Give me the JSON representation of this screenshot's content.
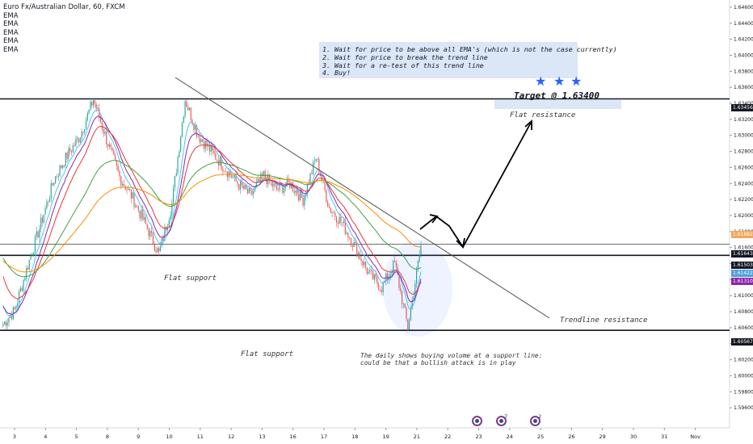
{
  "legend": {
    "title": "Euro Fx/Australian Dollar, 60, FXCM",
    "indicators": [
      "EMA",
      "EMA",
      "EMA",
      "EMA",
      "EMA"
    ]
  },
  "note": {
    "lines": [
      "1. Wait for price to be above all EMA's (which is not the case currently)",
      "2. Wait for price to break the trend line",
      "3. Wait for a re-test of this trend line",
      "4. Buy!"
    ]
  },
  "annotations": {
    "target": "Target @ 1.63400",
    "flat_resistance": "Flat resistance",
    "flat_support_1": "Flat support",
    "flat_support_2": "Flat support",
    "trendline_resistance": "Trendline resistance",
    "daily_note_1": "The daily shows buying volume at a support line:",
    "daily_note_2": "could be that a bullish attack is in play"
  },
  "stars": [
    "star-icon",
    "star-icon",
    "star-icon"
  ],
  "price_tags": [
    {
      "label": "1.63456",
      "color": "#131722"
    },
    {
      "label": "1.61882",
      "color": "#f5a55a"
    },
    {
      "label": "1.61643",
      "color": "#131722"
    },
    {
      "label": "1.61503",
      "color": "#131722"
    },
    {
      "label": "1.61422",
      "color": "#4f9fd9"
    },
    {
      "label": "1.61310",
      "color": "#8e24aa"
    },
    {
      "label": "1.60567",
      "color": "#131722"
    }
  ],
  "events": [
    {
      "name": "event-icon",
      "count": ""
    },
    {
      "name": "event-icon",
      "count": "7"
    },
    {
      "name": "event-icon",
      "count": "2"
    }
  ],
  "chart_data": {
    "type": "candlestick",
    "symbol": "Euro Fx/Australian Dollar, 60, FXCM",
    "ylim": [
      1.594,
      1.6465
    ],
    "y_ticks": [
      "1.64600",
      "1.64400",
      "1.64200",
      "1.64000",
      "1.63800",
      "1.63600",
      "1.63400",
      "1.63200",
      "1.63000",
      "1.62800",
      "1.62600",
      "1.62400",
      "1.62200",
      "1.62000",
      "1.61800",
      "1.61600",
      "1.61400",
      "1.61200",
      "1.61000",
      "1.60800",
      "1.60600",
      "1.60400",
      "1.60200",
      "1.60000",
      "1.59800",
      "1.59600"
    ],
    "x_ticks": [
      "3",
      "4",
      "5",
      "8",
      "9",
      "10",
      "11",
      "12",
      "13",
      "16",
      "17",
      "18",
      "19",
      "21",
      "22",
      "23",
      "24",
      "25",
      "26",
      "29",
      "30",
      "31",
      "Nov"
    ],
    "approx_close_path": [
      {
        "x": 0,
        "y": 1.6062
      },
      {
        "x": 1,
        "y": 1.6082
      },
      {
        "x": 2,
        "y": 1.6138
      },
      {
        "x": 3,
        "y": 1.619
      },
      {
        "x": 4,
        "y": 1.6245
      },
      {
        "x": 5,
        "y": 1.6275
      },
      {
        "x": 6,
        "y": 1.63
      },
      {
        "x": 7,
        "y": 1.6345
      },
      {
        "x": 8,
        "y": 1.6295
      },
      {
        "x": 9,
        "y": 1.6248
      },
      {
        "x": 10,
        "y": 1.6222
      },
      {
        "x": 11,
        "y": 1.6188
      },
      {
        "x": 12,
        "y": 1.6152
      },
      {
        "x": 13,
        "y": 1.6215
      },
      {
        "x": 14,
        "y": 1.6345
      },
      {
        "x": 15,
        "y": 1.63
      },
      {
        "x": 16,
        "y": 1.628
      },
      {
        "x": 17,
        "y": 1.626
      },
      {
        "x": 18,
        "y": 1.624
      },
      {
        "x": 19,
        "y": 1.6225
      },
      {
        "x": 20,
        "y": 1.625
      },
      {
        "x": 21,
        "y": 1.6232
      },
      {
        "x": 22,
        "y": 1.624
      },
      {
        "x": 23,
        "y": 1.622
      },
      {
        "x": 24,
        "y": 1.6272
      },
      {
        "x": 25,
        "y": 1.621
      },
      {
        "x": 26,
        "y": 1.619
      },
      {
        "x": 27,
        "y": 1.616
      },
      {
        "x": 28,
        "y": 1.6128
      },
      {
        "x": 29,
        "y": 1.611
      },
      {
        "x": 30,
        "y": 1.614
      },
      {
        "x": 31,
        "y": 1.606
      },
      {
        "x": 32,
        "y": 1.6162
      }
    ],
    "horizontal_levels": [
      1.63456,
      1.61643,
      1.61503,
      1.60567
    ],
    "ema_colors": [
      "#4fc3f7",
      "#8e24aa",
      "#e53935",
      "#43a047",
      "#fb8c00"
    ]
  }
}
